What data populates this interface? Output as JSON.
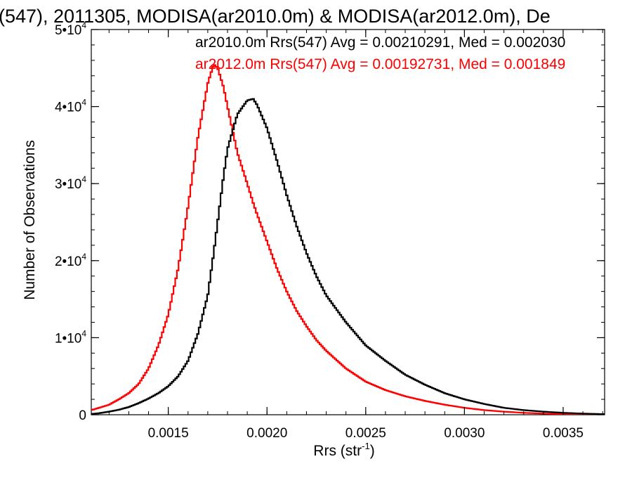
{
  "chart_data": {
    "type": "line",
    "style": "histogram-step",
    "title": "(547), 2011305, MODISA(ar2010.0m) & MODISA(ar2012.0m), De",
    "xlabel_main": "Rrs (str",
    "xlabel_sup": "-1",
    "xlabel_end": ")",
    "ylabel": "Number of Observations",
    "xlim": [
      0.00111,
      0.00371
    ],
    "ylim": [
      0,
      50000
    ],
    "xticks": [
      {
        "value": 0.0015,
        "label": "0.0015"
      },
      {
        "value": 0.002,
        "label": "0.0020"
      },
      {
        "value": 0.0025,
        "label": "0.0025"
      },
      {
        "value": 0.003,
        "label": "0.0030"
      },
      {
        "value": 0.0035,
        "label": "0.0035"
      }
    ],
    "yticks": [
      {
        "value": 0,
        "base": "0",
        "exp": ""
      },
      {
        "value": 10000,
        "base": "1•10",
        "exp": "4"
      },
      {
        "value": 20000,
        "base": "2•10",
        "exp": "4"
      },
      {
        "value": 30000,
        "base": "3•10",
        "exp": "4"
      },
      {
        "value": 40000,
        "base": "4•10",
        "exp": "4"
      },
      {
        "value": 50000,
        "base": "5•10",
        "exp": "4"
      }
    ],
    "x": [
      0.00111,
      0.00115,
      0.0012,
      0.00125,
      0.0013,
      0.00135,
      0.0014,
      0.00145,
      0.0015,
      0.00155,
      0.0016,
      0.00165,
      0.0017,
      0.00173,
      0.00175,
      0.00178,
      0.0018,
      0.00185,
      0.0019,
      0.00193,
      0.00195,
      0.002,
      0.00205,
      0.0021,
      0.00215,
      0.0022,
      0.00225,
      0.0023,
      0.0024,
      0.0025,
      0.0026,
      0.0027,
      0.0028,
      0.0029,
      0.003,
      0.0031,
      0.0032,
      0.0033,
      0.0034,
      0.0035,
      0.0036,
      0.0037
    ],
    "series": [
      {
        "name": "ar2010.0m",
        "color": "#000000",
        "annotation": "ar2010.0m Rrs(547) Avg = 0.00210291, Med = 0.002030",
        "values": [
          100,
          200,
          400,
          650,
          1000,
          1500,
          2100,
          2800,
          3700,
          5000,
          7000,
          10500,
          15500,
          21000,
          25000,
          31000,
          34500,
          39000,
          40800,
          41000,
          40200,
          37200,
          33000,
          28500,
          24500,
          21000,
          18000,
          15500,
          12000,
          9000,
          7000,
          5200,
          3900,
          2800,
          2000,
          1400,
          900,
          600,
          400,
          250,
          150,
          80
        ]
      },
      {
        "name": "ar2012.0m",
        "color": "#ff0000",
        "annotation": "ar2012.0m Rrs(547) Avg = 0.00192731, Med = 0.001849",
        "values": [
          600,
          900,
          1300,
          2000,
          2800,
          4000,
          6000,
          9000,
          13000,
          19000,
          27000,
          36000,
          43000,
          45500,
          45000,
          42500,
          40000,
          34000,
          30000,
          27500,
          26000,
          22500,
          19000,
          16000,
          13500,
          11500,
          9700,
          8300,
          6000,
          4300,
          3200,
          2400,
          1800,
          1300,
          900,
          600,
          400,
          250,
          150,
          80,
          40,
          20
        ]
      }
    ]
  }
}
